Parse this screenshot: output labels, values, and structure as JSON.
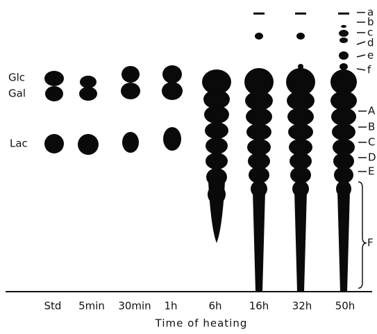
{
  "sugar_labels": [
    "Glc",
    "Gal",
    "Lac"
  ],
  "lanes": [
    "Std",
    "5min",
    "30min",
    "1h",
    "6h",
    "16h",
    "32h",
    "50h"
  ],
  "x_title": "Time of heating",
  "band_labels": [
    "a",
    "b",
    "c",
    "d",
    "e",
    "f",
    "A",
    "B",
    "C",
    "D",
    "E",
    "F"
  ]
}
